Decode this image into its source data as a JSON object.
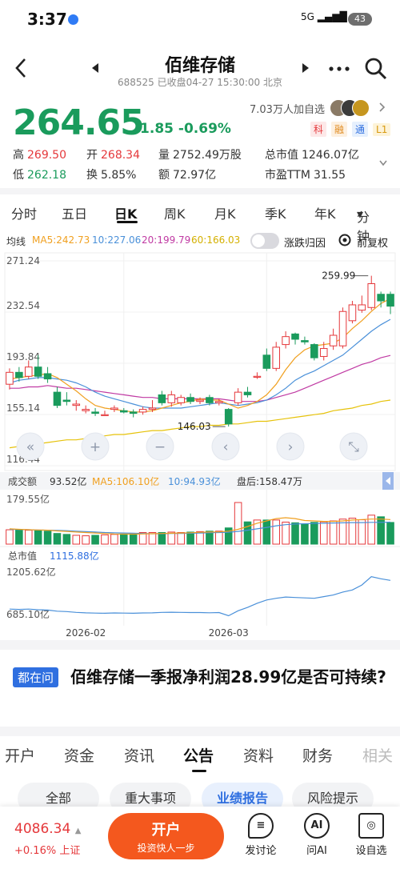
{
  "status": {
    "time": "3:37",
    "signal": "5G",
    "battery": "43"
  },
  "header": {
    "title": "佰维存储",
    "code": "688525",
    "status_text": "已收盘04-27 15:30:00 北京"
  },
  "quote": {
    "price": "264.65",
    "change": "-1.85",
    "change_pct": "-0.69%",
    "fav_count": "7.03万人加自选",
    "tags": [
      "科",
      "融",
      "通",
      "L1"
    ],
    "high_label": "高",
    "high": "269.50",
    "open_label": "开",
    "open": "268.34",
    "vol_label": "量",
    "vol": "2752.49万股",
    "mktcap_label": "总市值",
    "mktcap": "1246.07亿",
    "low_label": "低",
    "low": "262.18",
    "turn_label": "换",
    "turn": "5.85%",
    "amt_label": "额",
    "amt": "72.97亿",
    "pe_label": "市盈TTM",
    "pe": "31.55"
  },
  "tabs": [
    "分时",
    "五日",
    "日K",
    "周K",
    "月K",
    "季K",
    "年K",
    "分钟"
  ],
  "indicators": {
    "label": "均线",
    "ma5": "MA5:242.73",
    "ma10": "10:227.06",
    "ma20": "20:199.79",
    "ma60": "60:166.03",
    "toggle_label": "涨跌归因",
    "fq_label": "前复权"
  },
  "volume_header": {
    "label": "成交额",
    "value": "93.52亿",
    "ma5": "MA5:106.10亿",
    "ma10": "10:94.93亿",
    "after": "盘后:158.47万"
  },
  "mktcap_header": {
    "label": "总市值",
    "value": "1115.88亿"
  },
  "colors": {
    "up": "#e5383b",
    "down": "#1a9b5c",
    "ma5": "#f0a020",
    "ma10": "#4a90d9",
    "ma20": "#c03aa3",
    "ma60": "#e6c20a",
    "accent": "#f4581e"
  },
  "chart_data": {
    "type": "candlestick",
    "y_ticks": [
      "271.24",
      "232.54",
      "193.84",
      "155.14",
      "116.44"
    ],
    "ylim": [
      116.44,
      271.24
    ],
    "annotations": [
      {
        "text": "259.99",
        "value": 259.99
      },
      {
        "text": "146.03",
        "value": 146.03
      }
    ],
    "x_labels": [
      "2026-02",
      "2026-03"
    ],
    "candles": [
      {
        "o": 178,
        "c": 187,
        "h": 190,
        "l": 174
      },
      {
        "o": 187,
        "c": 183,
        "h": 191,
        "l": 180
      },
      {
        "o": 184,
        "c": 191,
        "h": 196,
        "l": 182
      },
      {
        "o": 191,
        "c": 184,
        "h": 200,
        "l": 182
      },
      {
        "o": 186,
        "c": 182,
        "h": 191,
        "l": 179
      },
      {
        "o": 172,
        "c": 162,
        "h": 176,
        "l": 160
      },
      {
        "o": 166,
        "c": 165,
        "h": 172,
        "l": 162
      },
      {
        "o": 162,
        "c": 163,
        "h": 166,
        "l": 158
      },
      {
        "o": 158,
        "c": 159,
        "h": 162,
        "l": 156
      },
      {
        "o": 157,
        "c": 156,
        "h": 160,
        "l": 154
      },
      {
        "o": 155,
        "c": 155,
        "h": 158,
        "l": 154
      },
      {
        "o": 159,
        "c": 160,
        "h": 162,
        "l": 157
      },
      {
        "o": 158,
        "c": 157,
        "h": 160,
        "l": 156
      },
      {
        "o": 157,
        "c": 156,
        "h": 159,
        "l": 153
      },
      {
        "o": 157,
        "c": 159,
        "h": 161,
        "l": 155
      },
      {
        "o": 159,
        "c": 160,
        "h": 166,
        "l": 157
      },
      {
        "o": 170,
        "c": 164,
        "h": 173,
        "l": 162
      },
      {
        "o": 164,
        "c": 170,
        "h": 173,
        "l": 161
      },
      {
        "o": 164,
        "c": 168,
        "h": 170,
        "l": 162
      },
      {
        "o": 168,
        "c": 165,
        "h": 171,
        "l": 163
      },
      {
        "o": 165,
        "c": 166,
        "h": 168,
        "l": 163
      },
      {
        "o": 168,
        "c": 164,
        "h": 170,
        "l": 162
      },
      {
        "o": 164,
        "c": 165,
        "h": 167,
        "l": 162
      },
      {
        "o": 159,
        "c": 148,
        "h": 160,
        "l": 146.03
      },
      {
        "o": 164,
        "c": 172,
        "h": 175,
        "l": 162
      },
      {
        "o": 172,
        "c": 170,
        "h": 176,
        "l": 168
      },
      {
        "o": 184,
        "c": 184,
        "h": 187,
        "l": 182
      },
      {
        "o": 200,
        "c": 190,
        "h": 205,
        "l": 188
      },
      {
        "o": 190,
        "c": 206,
        "h": 210,
        "l": 188
      },
      {
        "o": 208,
        "c": 214,
        "h": 218,
        "l": 205
      },
      {
        "o": 216,
        "c": 212,
        "h": 217,
        "l": 208
      },
      {
        "o": 211,
        "c": 210,
        "h": 214,
        "l": 208
      },
      {
        "o": 208,
        "c": 198,
        "h": 209,
        "l": 196
      },
      {
        "o": 199,
        "c": 205,
        "h": 210,
        "l": 196
      },
      {
        "o": 207,
        "c": 215,
        "h": 220,
        "l": 204
      },
      {
        "o": 207,
        "c": 233,
        "h": 236,
        "l": 205
      },
      {
        "o": 226,
        "c": 238,
        "h": 241,
        "l": 224
      },
      {
        "o": 234,
        "c": 238,
        "h": 245,
        "l": 232
      },
      {
        "o": 236,
        "c": 254,
        "h": 259.99,
        "l": 234
      },
      {
        "o": 246,
        "c": 241,
        "h": 248,
        "l": 236
      },
      {
        "o": 246,
        "c": 237,
        "h": 248,
        "l": 231
      }
    ],
    "ma5": [
      182,
      183,
      184,
      185,
      186,
      183,
      178,
      173,
      167,
      162,
      160,
      159,
      158,
      157,
      157,
      158,
      160,
      162,
      164,
      165,
      167,
      166,
      166,
      163,
      160,
      162,
      165,
      170,
      178,
      189,
      198,
      204,
      207,
      208,
      209,
      213,
      220,
      226,
      233,
      239,
      242.73
    ],
    "ma10": [
      179,
      181,
      182,
      183,
      183,
      182,
      181,
      179,
      176,
      172,
      169,
      167,
      165,
      163,
      161,
      160,
      160,
      160,
      160,
      161,
      162,
      163,
      164,
      163,
      162,
      163,
      164,
      166,
      170,
      175,
      181,
      185,
      188,
      192,
      196,
      200,
      206,
      212,
      218,
      223,
      227.06
    ],
    "ma20": [
      175,
      175,
      176,
      176,
      177,
      176,
      175,
      175,
      174,
      173,
      172,
      171,
      170,
      169,
      168,
      168,
      167,
      167,
      167,
      167,
      167,
      167,
      167,
      166,
      165,
      165,
      165,
      166,
      168,
      170,
      172,
      175,
      178,
      181,
      184,
      187,
      190,
      193,
      195,
      198,
      199.79
    ],
    "ma60": [
      130,
      131,
      132,
      133,
      134,
      135,
      136,
      136,
      137,
      138,
      139,
      140,
      140,
      141,
      142,
      143,
      143,
      144,
      145,
      146,
      146,
      147,
      147,
      148,
      148,
      149,
      150,
      150,
      151,
      152,
      153,
      154,
      155,
      156,
      158,
      159,
      160,
      162,
      163,
      165,
      166.03
    ],
    "volume": {
      "ylabel_top": "179.55亿",
      "values": [
        62,
        62,
        60,
        58,
        56,
        46,
        42,
        38,
        36,
        38,
        40,
        42,
        44,
        46,
        50,
        50,
        50,
        52,
        50,
        52,
        54,
        56,
        56,
        70,
        179.55,
        96,
        104,
        104,
        104,
        95,
        92,
        88,
        94,
        96,
        100,
        108,
        112,
        105,
        125,
        118,
        93.52
      ],
      "ma5": [
        66,
        64,
        62,
        61,
        60,
        57,
        55,
        52,
        50,
        48,
        46,
        44,
        43,
        43,
        44,
        45,
        46,
        47,
        48,
        49,
        51,
        52,
        53,
        56,
        64,
        76,
        90,
        100,
        110,
        114,
        110,
        102,
        100,
        98,
        98,
        100,
        104,
        106,
        108,
        108,
        106.1
      ],
      "ma10": [
        64,
        63,
        62,
        61,
        60,
        59,
        58,
        56,
        54,
        52,
        50,
        49,
        48,
        47,
        46,
        45,
        45,
        46,
        46,
        47,
        48,
        49,
        50,
        51,
        55,
        60,
        66,
        72,
        79,
        84,
        87,
        88,
        89,
        90,
        91,
        92,
        93,
        93,
        94,
        94,
        94.93
      ]
    },
    "market_cap": {
      "ylabel_top": "1205.62亿",
      "ylabel_bottom": "685.10亿",
      "ylim": [
        685.1,
        1205.62
      ],
      "values": [
        770,
        766,
        770,
        762,
        758,
        745,
        740,
        730,
        725,
        722,
        720,
        724,
        722,
        720,
        724,
        725,
        730,
        732,
        730,
        728,
        728,
        726,
        728,
        690,
        750,
        790,
        840,
        880,
        900,
        915,
        910,
        905,
        900,
        920,
        940,
        975,
        1000,
        1060,
        1160,
        1135,
        1115.88
      ]
    }
  },
  "ask": {
    "badge": "都在问",
    "question": "佰维存储一季报净利润28.99亿是否可持续?"
  },
  "subtabs": [
    "开户",
    "资金",
    "资讯",
    "公告",
    "资料",
    "财务",
    "相关"
  ],
  "pills": [
    "全部",
    "重大事项",
    "业绩报告",
    "风险提示"
  ],
  "footer": {
    "index_value": "4086.34",
    "index_change": "+0.16% 上证",
    "open_label": "开户",
    "open_sub": "投资快人一步",
    "discuss": "发讨论",
    "ai": "问AI",
    "fav": "设自选"
  }
}
